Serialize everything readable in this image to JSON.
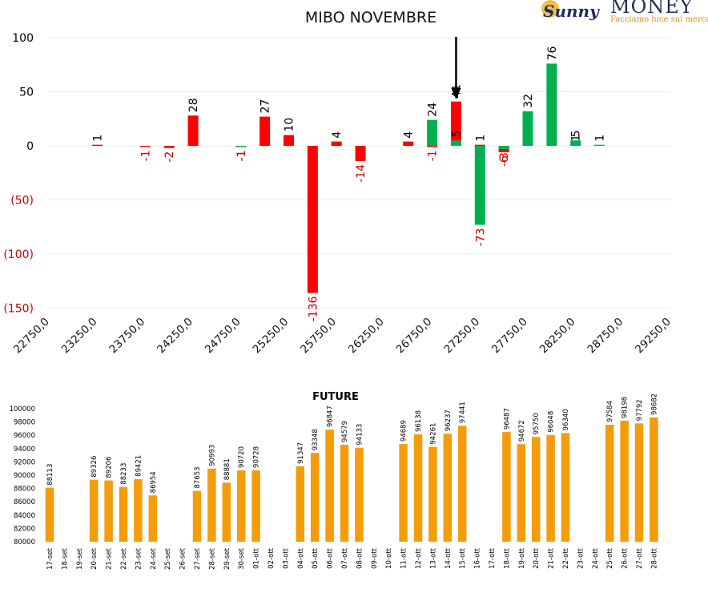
{
  "logo": {
    "brand_left": "Sunny",
    "brand_right": "MONEY",
    "tagline": "Facciamo luce sui mercati"
  },
  "chart_data": [
    {
      "type": "bar",
      "title": "MIBO NOVEMBRE",
      "x_tick_labels": [
        "22750,0",
        "23250,0",
        "23750,0",
        "24250,0",
        "24750,0",
        "25250,0",
        "25750,0",
        "26250,0",
        "26750,0",
        "27250,0",
        "27750,0",
        "28250,0",
        "28750,0",
        "29250,0"
      ],
      "y_tick_labels": [
        "100",
        "50",
        "0",
        "(50)",
        "(100)",
        "(150)"
      ],
      "ylim": [
        -150,
        100
      ],
      "grid": true,
      "legend": "none",
      "colors": {
        "negative": "#ff0000",
        "positive": "#00b050",
        "neg_label": "#cc0000",
        "text": "#000000"
      },
      "series": [
        {
          "color": "#ff0000",
          "points": [
            {
              "x": 23250,
              "y": 1
            },
            {
              "x": 23750,
              "y": -1
            },
            {
              "x": 24000,
              "y": -2
            },
            {
              "x": 24250,
              "y": 28
            },
            {
              "x": 24750,
              "y": -1
            },
            {
              "x": 25000,
              "y": 27
            },
            {
              "x": 25250,
              "y": 10
            },
            {
              "x": 25500,
              "y": -136
            },
            {
              "x": 25750,
              "y": 4
            },
            {
              "x": 26000,
              "y": -14
            },
            {
              "x": 26500,
              "y": 4
            },
            {
              "x": 26750,
              "y": -1
            },
            {
              "x": 27000,
              "y": 41
            },
            {
              "x": 27250,
              "y": 1
            },
            {
              "x": 27500,
              "y": -6
            },
            {
              "x": 28250,
              "y": 1
            }
          ]
        },
        {
          "color": "#00b050",
          "points": [
            {
              "x": 24750,
              "y": -1
            },
            {
              "x": 26750,
              "y": 24
            },
            {
              "x": 27000,
              "y": 5
            },
            {
              "x": 27250,
              "y": -73
            },
            {
              "x": 27500,
              "y": -3
            },
            {
              "x": 27750,
              "y": 32
            },
            {
              "x": 28000,
              "y": 76
            },
            {
              "x": 28250,
              "y": 5
            },
            {
              "x": 28500,
              "y": 1
            }
          ]
        }
      ],
      "marker": {
        "type": "arrow-down",
        "x": 27000
      }
    },
    {
      "type": "bar",
      "title": "FUTURE",
      "categories": [
        "17-set",
        "18-set",
        "19-set",
        "20-set",
        "21-set",
        "22-set",
        "23-set",
        "24-set",
        "25-set",
        "26-set",
        "27-set",
        "28-set",
        "29-set",
        "30-set",
        "01-ott",
        "02-ott",
        "03-ott",
        "04-ott",
        "05-ott",
        "06-ott",
        "07-ott",
        "08-ott",
        "09-ott",
        "10-ott",
        "11-ott",
        "12-ott",
        "13-ott",
        "14-ott",
        "15-ott",
        "16-ott",
        "17-ott",
        "18-ott",
        "19-ott",
        "20-ott",
        "21-ott",
        "22-ott",
        "23-ott",
        "24-ott",
        "25-ott",
        "26-ott",
        "27-ott",
        "28-ott"
      ],
      "values": [
        88113,
        null,
        null,
        89326,
        89206,
        88233,
        89421,
        86954,
        null,
        null,
        87653,
        90993,
        88881,
        90720,
        90728,
        null,
        null,
        91347,
        93348,
        96847,
        94579,
        94133,
        null,
        null,
        94689,
        96138,
        94261,
        96237,
        97441,
        null,
        null,
        96487,
        94672,
        95750,
        96048,
        96340,
        null,
        null,
        97584,
        98198,
        97792,
        98682
      ],
      "y_tick_labels": [
        "100000",
        "98000",
        "96000",
        "94000",
        "92000",
        "90000",
        "88000",
        "86000",
        "84000",
        "82000",
        "80000"
      ],
      "ylim": [
        80000,
        100000
      ],
      "grid": false,
      "legend": "none",
      "colors": {
        "bar": "#f59c0b"
      }
    }
  ]
}
